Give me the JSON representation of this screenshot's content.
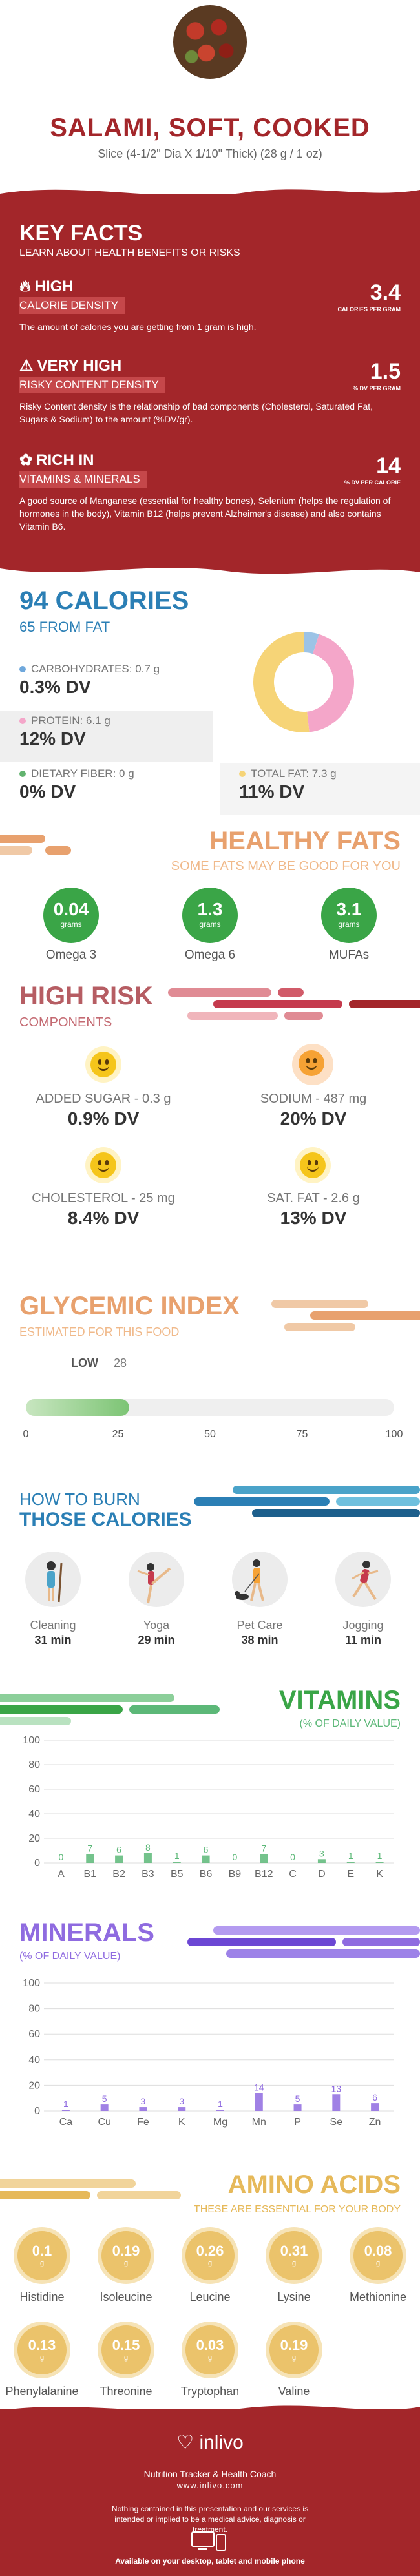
{
  "header": {
    "title": "SALAMI, SOFT, COOKED",
    "subtitle": "Slice (4-1/2\" Dia X 1/10\" Thick) (28 g / 1 oz)"
  },
  "key_facts": {
    "title": "KEY FACTS",
    "subtitle": "LEARN ABOUT HEALTH BENEFITS OR RISKS",
    "items": [
      {
        "level": "HIGH",
        "label": "CALORIE DENSITY",
        "value": "3.4",
        "unit": "CALORIES PER GRAM",
        "description": "The amount of calories you are getting from 1 gram is high.",
        "icon": "flame-icon"
      },
      {
        "level": "VERY HIGH",
        "label": "RISKY CONTENT DENSITY",
        "value": "1.5",
        "unit": "% DV PER GRAM",
        "description": "Risky Content density is the relationship of bad components (Cholesterol, Saturated Fat, Sugars & Sodium) to the amount (%DV/gr).",
        "icon": "warning-icon"
      },
      {
        "level": "RICH  IN",
        "label": "VITAMINS & MINERALS",
        "value": "14",
        "unit": "% DV PER CALORIE",
        "description": "A good source of Manganese (essential for healthy bones), Selenium (helps the regulation of hormones in the body), Vitamin B12 (helps prevent Alzheimer's disease) and also contains Vitamin B6.",
        "icon": "leaf-icon"
      }
    ]
  },
  "calories": {
    "title": "94 CALORIES",
    "subtitle": "65 FROM FAT",
    "macros": [
      {
        "label": "CARBOHYDRATES: 0.7 g",
        "dv": "0.3% DV",
        "color": "#6fa8dc"
      },
      {
        "label": "PROTEIN: 6.1 g",
        "dv": "12% DV",
        "color": "#f4a6c9"
      },
      {
        "label": "DIETARY FIBER: 0 g",
        "dv": "0% DV",
        "color": "#62b36f"
      },
      {
        "label": "TOTAL FAT: 7.3 g",
        "dv": "11% DV",
        "color": "#f6d477"
      }
    ],
    "donut": [
      {
        "name": "Carbohydrates",
        "value": 0.7,
        "color": "#9cc3e6"
      },
      {
        "name": "Protein",
        "value": 6.1,
        "color": "#f4a6c9"
      },
      {
        "name": "Fat",
        "value": 7.3,
        "color": "#f6d477"
      }
    ]
  },
  "healthy_fats": {
    "title": "HEALTHY FATS",
    "subtitle": "SOME FATS MAY BE GOOD FOR YOU",
    "unit": "grams",
    "items": [
      {
        "value": "0.04",
        "label": "Omega 3"
      },
      {
        "value": "1.3",
        "label": "Omega 6"
      },
      {
        "value": "3.1",
        "label": "MUFAs"
      }
    ]
  },
  "high_risk": {
    "title": "HIGH RISK",
    "subtitle": "COMPONENTS",
    "items": [
      {
        "label": "ADDED SUGAR - 0.3 g",
        "dv": "0.9% DV",
        "mood": "yellow"
      },
      {
        "label": "SODIUM - 487 mg",
        "dv": "20% DV",
        "mood": "orange"
      },
      {
        "label": "CHOLESTEROL - 25 mg",
        "dv": "8.4% DV",
        "mood": "yellow"
      },
      {
        "label": "SAT. FAT - 2.6 g",
        "dv": "13% DV",
        "mood": "yellow"
      }
    ]
  },
  "glycemic": {
    "title": "GLYCEMIC INDEX",
    "subtitle": "ESTIMATED FOR THIS FOOD",
    "level": "LOW",
    "value": 28,
    "value_text": "28",
    "ticks": [
      "0",
      "25",
      "50",
      "75",
      "100"
    ]
  },
  "burn": {
    "title_line1": "HOW TO BURN",
    "title_line2": "THOSE CALORIES",
    "activities": [
      {
        "name": "Cleaning",
        "time": "31 min",
        "icon": "cleaning-icon"
      },
      {
        "name": "Yoga",
        "time": "29 min",
        "icon": "yoga-icon"
      },
      {
        "name": "Pet Care",
        "time": "38 min",
        "icon": "dog-walking-icon"
      },
      {
        "name": "Jogging",
        "time": "11 min",
        "icon": "jogging-icon"
      }
    ]
  },
  "chart_data": [
    {
      "type": "bar",
      "title": "VITAMINS",
      "subtitle": "(% OF DAILY VALUE)",
      "categories": [
        "A",
        "B1",
        "B2",
        "B3",
        "B5",
        "B6",
        "B9",
        "B12",
        "C",
        "D",
        "E",
        "K"
      ],
      "values": [
        0,
        7,
        6,
        8,
        1,
        6,
        0,
        7,
        0,
        3,
        1,
        1
      ],
      "ylim": [
        0,
        100
      ],
      "yticks": [
        "0",
        "20",
        "40",
        "60",
        "80",
        "100"
      ],
      "color": "#5cb878",
      "grid": true
    },
    {
      "type": "bar",
      "title": "MINERALS",
      "subtitle": "(% OF DAILY VALUE)",
      "categories": [
        "Ca",
        "Cu",
        "Fe",
        "K",
        "Mg",
        "Mn",
        "P",
        "Se",
        "Zn"
      ],
      "values": [
        1,
        5,
        3,
        3,
        1,
        14,
        5,
        13,
        6
      ],
      "ylim": [
        0,
        100
      ],
      "yticks": [
        "0",
        "20",
        "40",
        "60",
        "80",
        "100"
      ],
      "color": "#8f6be0",
      "grid": true
    }
  ],
  "amino": {
    "title": "AMINO ACIDS",
    "subtitle": "THESE ARE ESSENTIAL FOR YOUR BODY",
    "unit": "g",
    "items": [
      {
        "value": "0.1",
        "name": "Histidine"
      },
      {
        "value": "0.19",
        "name": "Isoleucine"
      },
      {
        "value": "0.26",
        "name": "Leucine"
      },
      {
        "value": "0.31",
        "name": "Lysine"
      },
      {
        "value": "0.08",
        "name": "Methionine"
      },
      {
        "value": "0.13",
        "name": "Phenylalanine"
      },
      {
        "value": "0.15",
        "name": "Threonine"
      },
      {
        "value": "0.03",
        "name": "Tryptophan"
      },
      {
        "value": "0.19",
        "name": "Valine"
      }
    ]
  },
  "footer": {
    "brand": "inlivo",
    "tagline": "Nutrition Tracker & Health Coach",
    "url": "www.inlivo.com",
    "disclaimer": "Nothing contained in this presentation and our services is intended or implied to be a medical advice, diagnosis or treatment.",
    "available": "Available on your desktop, tablet and mobile phone"
  }
}
